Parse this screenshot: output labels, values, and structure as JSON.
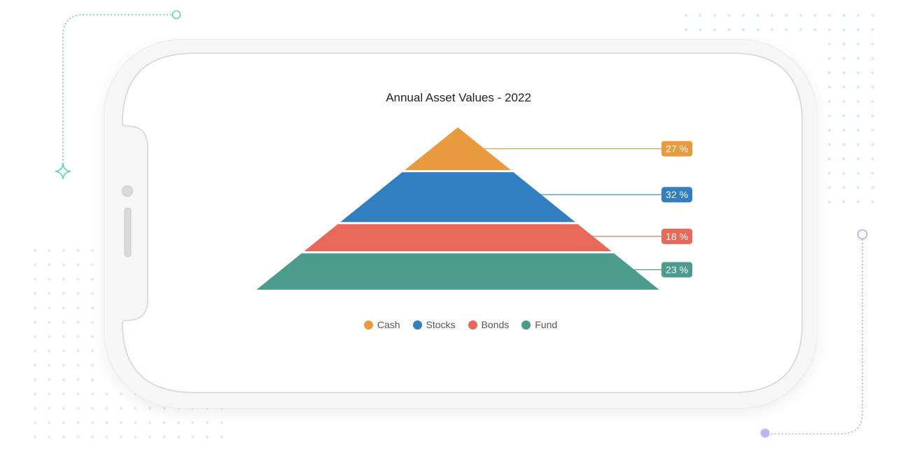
{
  "chart_data": {
    "type": "pyramid",
    "title": "Annual Asset Values - 2022",
    "series": [
      {
        "name": "Cash",
        "value": 27,
        "label": "27 %",
        "color": "#e99a3f"
      },
      {
        "name": "Stocks",
        "value": 32,
        "label": "32 %",
        "color": "#317fc0"
      },
      {
        "name": "Bonds",
        "value": 18,
        "label": "18 %",
        "color": "#e8695a"
      },
      {
        "name": "Fund",
        "value": 23,
        "label": "23 %",
        "color": "#4c9c8e"
      }
    ],
    "legend_position": "bottom"
  },
  "icons": [
    "home-button-icon",
    "volume-slider-icon",
    "sparkle-icon"
  ]
}
